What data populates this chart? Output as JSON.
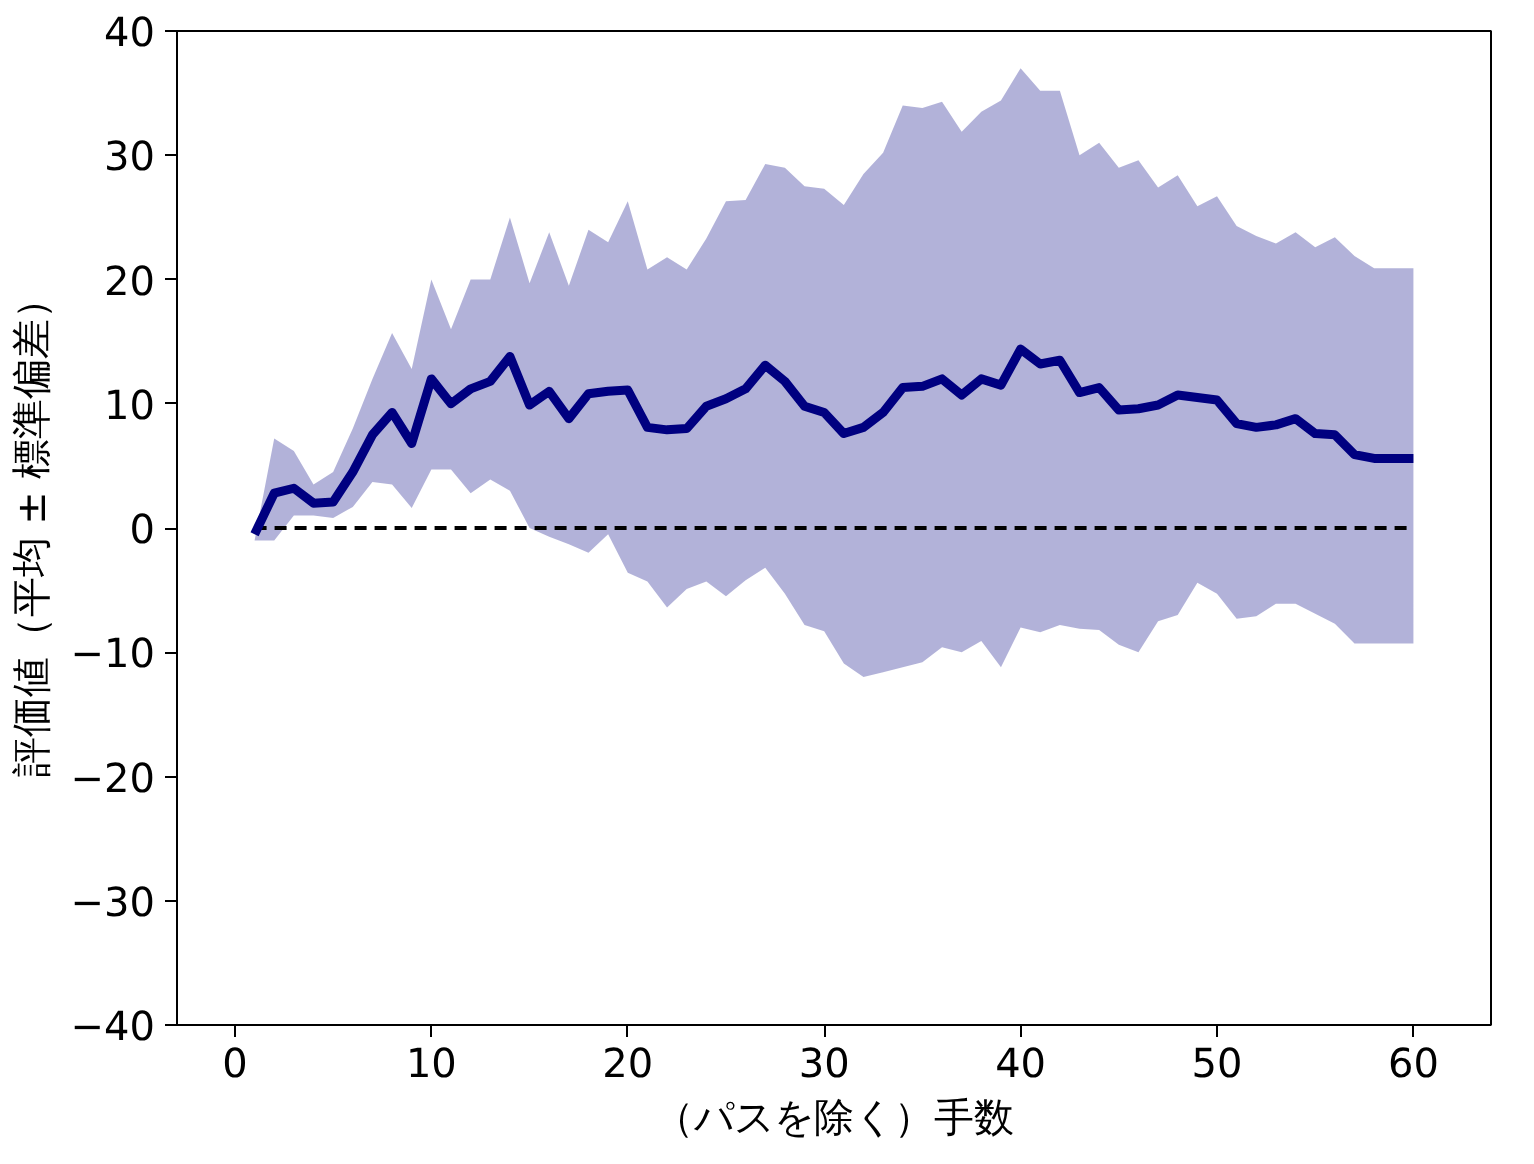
{
  "chart_data": {
    "type": "line",
    "xlabel": "（パスを除く）手数",
    "ylabel": "評価値（平均 ± 標準偏差）",
    "xlim": [
      -2.95,
      63.95
    ],
    "ylim": [
      -40,
      40
    ],
    "xticks": [
      0,
      10,
      20,
      30,
      40,
      50,
      60
    ],
    "yticks": [
      -40,
      -30,
      -20,
      -10,
      0,
      10,
      20,
      30,
      40
    ],
    "grid": false,
    "marker": "none",
    "line_style": "solid",
    "x": [
      1,
      2,
      3,
      4,
      5,
      6,
      7,
      8,
      9,
      10,
      11,
      12,
      13,
      14,
      15,
      16,
      17,
      18,
      19,
      20,
      21,
      22,
      23,
      24,
      25,
      26,
      27,
      28,
      29,
      30,
      31,
      32,
      33,
      34,
      35,
      36,
      37,
      38,
      39,
      40,
      41,
      42,
      43,
      44,
      45,
      46,
      47,
      48,
      49,
      50,
      51,
      52,
      53,
      54,
      55,
      56,
      57,
      58,
      59,
      60
    ],
    "series": [
      {
        "color": "#000080",
        "values": [
          -0.5,
          2.8,
          3.2,
          2,
          2.1,
          4.5,
          7.5,
          9.3,
          6.8,
          12,
          10,
          11.2,
          11.8,
          13.8,
          9.9,
          11,
          8.8,
          10.8,
          11,
          11.1,
          8.1,
          7.9,
          8,
          9.8,
          10.4,
          11.2,
          13.1,
          11.8,
          9.8,
          9.3,
          7.6,
          8.1,
          9.3,
          11.3,
          11.4,
          12,
          10.7,
          12,
          11.5,
          14.4,
          13.2,
          13.5,
          10.9,
          11.3,
          9.5,
          9.6,
          9.9,
          10.7,
          10.5,
          10.3,
          8.4,
          8.1,
          8.3,
          8.8,
          7.6,
          7.5,
          5.9,
          5.6,
          5.6,
          5.6
        ],
        "upper": [
          -1,
          7.2,
          6.2,
          3.5,
          4.5,
          8,
          12,
          15.7,
          12.8,
          20,
          16,
          20,
          20,
          25,
          19.7,
          23.8,
          19.5,
          24,
          23,
          26.3,
          20.8,
          21.8,
          20.8,
          23.3,
          26.3,
          26.4,
          29.3,
          29,
          27.5,
          27.3,
          26,
          28.5,
          30.2,
          34,
          33.8,
          34.3,
          31.9,
          33.5,
          34.4,
          37,
          35.2,
          35.2,
          30,
          31,
          29,
          29.6,
          27.4,
          28.4,
          25.9,
          26.7,
          24.3,
          23.5,
          22.9,
          23.8,
          22.6,
          23.4,
          21.9,
          20.9,
          20.9,
          20.9
        ],
        "lower": [
          -1,
          -1,
          1,
          1,
          0.8,
          1.7,
          3.7,
          3.5,
          1.6,
          4.7,
          4.7,
          2.8,
          3.9,
          3,
          0,
          -0.7,
          -1.3,
          -2,
          -0.5,
          -3.6,
          -4.3,
          -6.4,
          -4.9,
          -4.3,
          -5.5,
          -4.2,
          -3.2,
          -5.3,
          -7.8,
          -8.3,
          -10.9,
          -12,
          -11.6,
          -11.2,
          -10.8,
          -9.6,
          -10,
          -9.1,
          -11.2,
          -8,
          -8.4,
          -7.8,
          -8.1,
          -8.2,
          -9.4,
          -10,
          -7.5,
          -7,
          -4.4,
          -5.3,
          -7.3,
          -7.1,
          -6.1,
          -6.1,
          -6.9,
          -7.7,
          -9.3,
          -9.3,
          -9.3,
          -9.3
        ]
      }
    ],
    "ref_lines": [
      {
        "axis": "y",
        "value": 0,
        "color": "#000000",
        "line_style": "dashed"
      }
    ]
  }
}
